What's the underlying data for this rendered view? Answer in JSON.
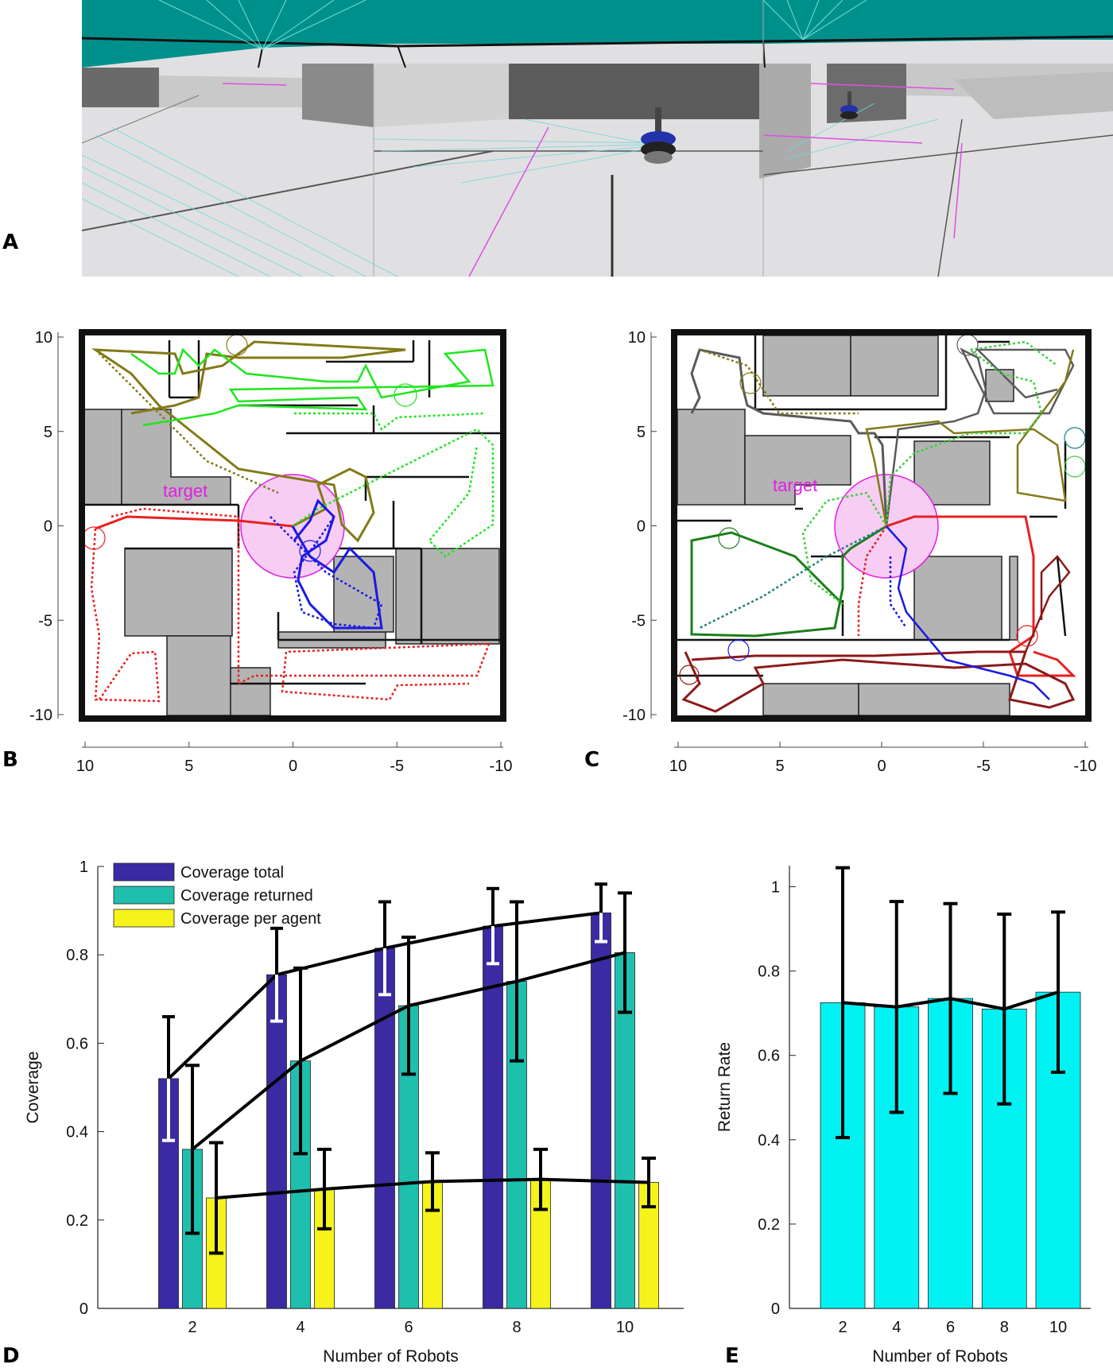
{
  "panels": {
    "a": {
      "letter": "A"
    },
    "b": {
      "letter": "B"
    },
    "c": {
      "letter": "C"
    },
    "d": {
      "letter": "D"
    },
    "e": {
      "letter": "E"
    }
  },
  "maps": {
    "b": {
      "target_label": "target",
      "xticks": [
        "10",
        "5",
        "0",
        "-5",
        "-10"
      ],
      "yticks": [
        "10",
        "5",
        "0",
        "-5",
        "-10"
      ]
    },
    "c": {
      "target_label": "target",
      "xticks": [
        "10",
        "5",
        "0",
        "-5",
        "-10"
      ],
      "yticks": [
        "10",
        "5",
        "0",
        "-5",
        "-10"
      ]
    }
  },
  "colors": {
    "coverage_total": "#3a2ba3",
    "coverage_returned": "#1fbfae",
    "coverage_per_agent": "#f5f31a",
    "return_rate": "#00f2f2",
    "teal_ceiling": "#00908c",
    "obstacle": "#b3b3b3",
    "target_zone": "#f7cdf4"
  },
  "chart_data": [
    {
      "type": "bar",
      "panel": "D",
      "title": "",
      "xlabel": "Number of Robots",
      "ylabel": "Coverage",
      "categories": [
        "2",
        "4",
        "6",
        "8",
        "10"
      ],
      "ylim": [
        0,
        1
      ],
      "yticks": [
        "0",
        "0.2",
        "0.4",
        "0.6",
        "0.8",
        "1"
      ],
      "legend_position": "top-left",
      "grid": false,
      "series": [
        {
          "name": "Coverage total",
          "values": [
            0.52,
            0.755,
            0.815,
            0.865,
            0.895
          ],
          "err": [
            0.14,
            0.105,
            0.105,
            0.085,
            0.065
          ]
        },
        {
          "name": "Coverage returned",
          "values": [
            0.36,
            0.56,
            0.685,
            0.74,
            0.805
          ],
          "err": [
            0.19,
            0.21,
            0.155,
            0.18,
            0.135
          ]
        },
        {
          "name": "Coverage per agent",
          "values": [
            0.25,
            0.27,
            0.287,
            0.292,
            0.285
          ],
          "err": [
            0.125,
            0.09,
            0.065,
            0.068,
            0.055
          ]
        }
      ]
    },
    {
      "type": "bar",
      "panel": "E",
      "title": "",
      "xlabel": "Number of Robots",
      "ylabel": "Return Rate",
      "categories": [
        "2",
        "4",
        "6",
        "8",
        "10"
      ],
      "ylim": [
        0,
        1.05
      ],
      "yticks": [
        "0",
        "0.2",
        "0.4",
        "0.6",
        "0.8",
        "1"
      ],
      "grid": false,
      "series": [
        {
          "name": "",
          "values": [
            0.725,
            0.715,
            0.735,
            0.71,
            0.75
          ],
          "err": [
            0.32,
            0.25,
            0.225,
            0.225,
            0.19
          ]
        }
      ]
    }
  ]
}
